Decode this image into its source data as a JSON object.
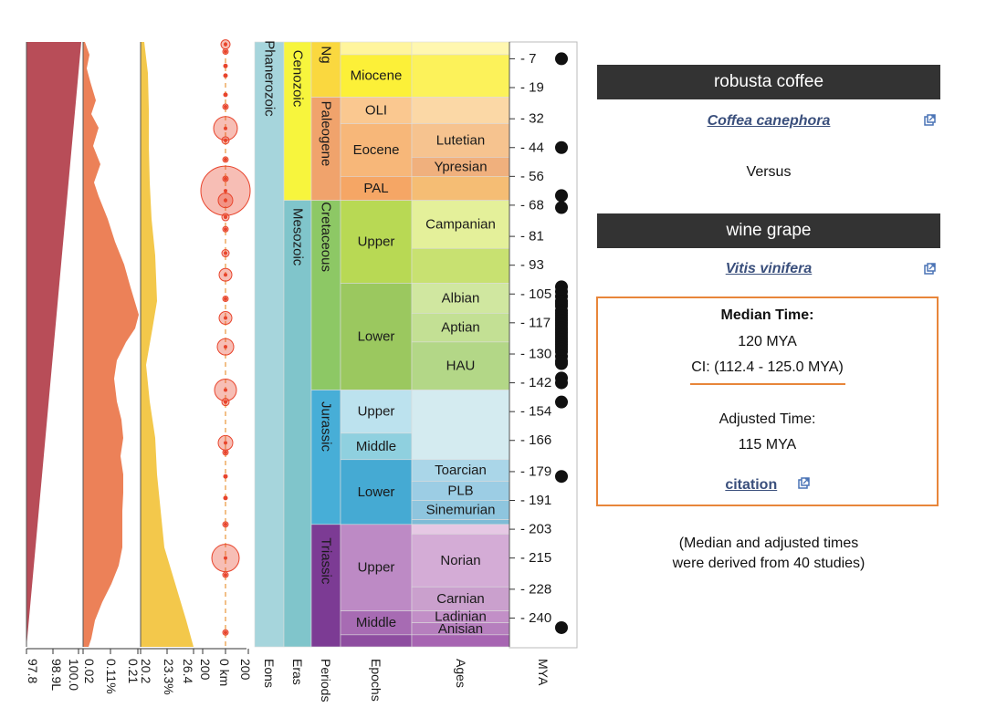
{
  "taxon_a": {
    "common_name": "robusta coffee",
    "scientific_name": "Coffea canephora"
  },
  "versus_label": "Versus",
  "taxon_b": {
    "common_name": "wine grape",
    "scientific_name": "Vitis vinifera"
  },
  "result": {
    "median_label": "Median Time:",
    "median_value": "120 MYA",
    "ci_text": "CI: (112.4 - 125.0 MYA)",
    "adjusted_label": "Adjusted Time:",
    "adjusted_value": "115 MYA",
    "citation_label": "citation"
  },
  "note": {
    "line1": "(Median and adjusted times",
    "line2": "were derived from 40 studies)"
  },
  "colors": {
    "header_bg": "#333333",
    "link": "#3a4f7c",
    "accent": "#e8863a",
    "bubble": "#e8442c"
  },
  "timeline": {
    "time_range_mya": [
      0,
      252
    ],
    "mya_ticks": [
      7,
      19,
      32,
      44,
      56,
      68,
      81,
      93,
      105,
      117,
      130,
      142,
      154,
      166,
      179,
      191,
      203,
      215,
      228,
      240
    ],
    "column_labels": {
      "eons": "Eons",
      "eras": "Eras",
      "periods": "Periods",
      "epochs": "Epochs",
      "ages": "Ages",
      "mya": "MYA",
      "a1": "97.8",
      "a2": "98.9L",
      "a3": "100.0",
      "b1": "0.02",
      "b2": "0.11%",
      "b3": "0.21",
      "c1": "20.2",
      "c2": "23.3%",
      "c3": "26.4",
      "d1": "200",
      "d2": "0 km",
      "d3": "200"
    },
    "eons": [
      {
        "name": "Phanerozoic",
        "start": 0,
        "end": 252,
        "color": "#a6d5dc"
      }
    ],
    "eras": [
      {
        "name": "Cenozoic",
        "start": 0,
        "end": 66,
        "color": "#f7f53d"
      },
      {
        "name": "Mesozoic",
        "start": 66,
        "end": 252,
        "color": "#80c5cb"
      }
    ],
    "periods": [
      {
        "name": "Ng",
        "start": 0,
        "end": 23,
        "color": "#fad83f"
      },
      {
        "name": "Paleogene",
        "start": 23,
        "end": 66,
        "color": "#f0a36c"
      },
      {
        "name": "Cretaceous",
        "start": 66,
        "end": 145,
        "color": "#8dc865"
      },
      {
        "name": "Jurassic",
        "start": 145,
        "end": 201,
        "color": "#47aed7"
      },
      {
        "name": "Triassic",
        "start": 201,
        "end": 252,
        "color": "#7c3b94"
      }
    ],
    "epochs": [
      {
        "name": "",
        "start": 0,
        "end": 5.3,
        "color": "#fff59d"
      },
      {
        "name": "Miocene",
        "start": 5.3,
        "end": 23,
        "color": "#fcf038"
      },
      {
        "name": "OLI",
        "start": 23,
        "end": 34,
        "color": "#fac890"
      },
      {
        "name": "Eocene",
        "start": 34,
        "end": 56,
        "color": "#f7b779"
      },
      {
        "name": "PAL",
        "start": 56,
        "end": 66,
        "color": "#f5a665"
      },
      {
        "name": "Upper",
        "start": 66,
        "end": 100.5,
        "color": "#b8d954"
      },
      {
        "name": "Lower",
        "start": 100.5,
        "end": 145,
        "color": "#9bc85f"
      },
      {
        "name": "Upper",
        "start": 145,
        "end": 163,
        "color": "#bce2ee"
      },
      {
        "name": "Middle",
        "start": 163,
        "end": 174,
        "color": "#8fd0df"
      },
      {
        "name": "Lower",
        "start": 174,
        "end": 201,
        "color": "#45aad3"
      },
      {
        "name": "Upper",
        "start": 201,
        "end": 237,
        "color": "#bd8ac5"
      },
      {
        "name": "Middle",
        "start": 237,
        "end": 247,
        "color": "#a76bb3"
      },
      {
        "name": "",
        "start": 247,
        "end": 252,
        "color": "#8e4da0"
      }
    ],
    "ages": [
      {
        "name": "",
        "start": 0,
        "end": 5.3,
        "color": "#fff7b0"
      },
      {
        "name": "",
        "start": 5.3,
        "end": 23,
        "color": "#fcf25a"
      },
      {
        "name": "",
        "start": 23,
        "end": 34,
        "color": "#fbd8a6"
      },
      {
        "name": "Lutetian",
        "start": 34,
        "end": 48,
        "color": "#f6c38f"
      },
      {
        "name": "Ypresian",
        "start": 48,
        "end": 56,
        "color": "#f0b07d"
      },
      {
        "name": "",
        "start": 56,
        "end": 66,
        "color": "#f5bd74"
      },
      {
        "name": "Campanian",
        "start": 66,
        "end": 86,
        "color": "#e4f09a"
      },
      {
        "name": "",
        "start": 86,
        "end": 100.5,
        "color": "#c8e171"
      },
      {
        "name": "Albian",
        "start": 100.5,
        "end": 113,
        "color": "#d0e7a0"
      },
      {
        "name": "Aptian",
        "start": 113,
        "end": 125,
        "color": "#c3e094"
      },
      {
        "name": "HAU",
        "start": 125,
        "end": 145,
        "color": "#b3d787"
      },
      {
        "name": "",
        "start": 145,
        "end": 174,
        "color": "#d4ebf0"
      },
      {
        "name": "Toarcian",
        "start": 174,
        "end": 183,
        "color": "#aad6e8"
      },
      {
        "name": "PLB",
        "start": 183,
        "end": 191,
        "color": "#9ccde4"
      },
      {
        "name": "Sinemurian",
        "start": 191,
        "end": 199,
        "color": "#8ec5de"
      },
      {
        "name": "",
        "start": 199,
        "end": 201,
        "color": "#7fbbd6"
      },
      {
        "name": "",
        "start": 201,
        "end": 205,
        "color": "#e6c8e4"
      },
      {
        "name": "Norian",
        "start": 205,
        "end": 227,
        "color": "#d4acd6"
      },
      {
        "name": "Carnian",
        "start": 227,
        "end": 237,
        "color": "#caa0cd"
      },
      {
        "name": "Ladinian",
        "start": 237,
        "end": 242,
        "color": "#c28fc7"
      },
      {
        "name": "Anisian",
        "start": 242,
        "end": 247,
        "color": "#b67fbe"
      },
      {
        "name": "",
        "start": 247,
        "end": 252,
        "color": "#a765b2"
      }
    ],
    "study_estimates_mya": [
      7,
      44,
      64,
      69,
      102,
      104,
      106,
      108,
      109,
      110,
      112,
      113,
      114,
      115,
      116,
      117,
      118,
      119,
      120,
      121,
      122,
      123,
      124,
      125,
      126,
      127,
      128,
      129,
      131,
      133,
      134,
      140,
      142,
      150,
      181,
      244
    ],
    "bubbles": [
      {
        "t": 1,
        "r": 5
      },
      {
        "t": 4,
        "r": 3
      },
      {
        "t": 10,
        "r": 2
      },
      {
        "t": 14,
        "r": 2
      },
      {
        "t": 22,
        "r": 2
      },
      {
        "t": 27,
        "r": 3
      },
      {
        "t": 36,
        "r": 13
      },
      {
        "t": 41,
        "r": 4
      },
      {
        "t": 49,
        "r": 3
      },
      {
        "t": 57,
        "r": 3
      },
      {
        "t": 62,
        "r": 27
      },
      {
        "t": 66,
        "r": 8
      },
      {
        "t": 73,
        "r": 4
      },
      {
        "t": 78,
        "r": 3
      },
      {
        "t": 88,
        "r": 4
      },
      {
        "t": 97,
        "r": 7
      },
      {
        "t": 107,
        "r": 3
      },
      {
        "t": 115,
        "r": 7
      },
      {
        "t": 127,
        "r": 9
      },
      {
        "t": 145,
        "r": 12
      },
      {
        "t": 150,
        "r": 4
      },
      {
        "t": 167,
        "r": 8
      },
      {
        "t": 171,
        "r": 3
      },
      {
        "t": 181,
        "r": 2
      },
      {
        "t": 190,
        "r": 2
      },
      {
        "t": 201,
        "r": 3
      },
      {
        "t": 215,
        "r": 15
      },
      {
        "t": 222,
        "r": 3
      },
      {
        "t": 246,
        "r": 3
      }
    ]
  }
}
